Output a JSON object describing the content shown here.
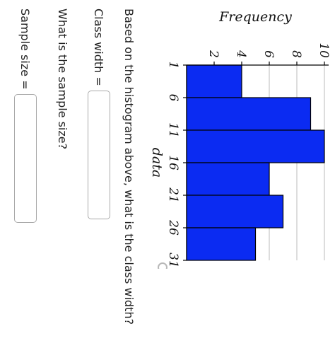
{
  "chart_data": {
    "type": "histogram",
    "xlabel": "data",
    "ylabel": "Frequency",
    "x_ticks": [
      1,
      6,
      11,
      16,
      21,
      26,
      31
    ],
    "y_ticks": [
      2,
      4,
      6,
      8,
      10
    ],
    "ylim": [
      0,
      10
    ],
    "bins": [
      {
        "start": 1,
        "end": 6,
        "value": 4
      },
      {
        "start": 6,
        "end": 11,
        "value": 9
      },
      {
        "start": 11,
        "end": 16,
        "value": 10
      },
      {
        "start": 16,
        "end": 21,
        "value": 6
      },
      {
        "start": 21,
        "end": 26,
        "value": 7
      },
      {
        "start": 26,
        "end": 31,
        "value": 5
      }
    ],
    "bar_color": "#0b2bf2",
    "grid": true
  },
  "icons": {
    "zoom": "magnifier-icon"
  },
  "questions": {
    "class_width_prompt": "Based on the histogram above, what is the class width?",
    "class_width_label": "Class width =",
    "class_width_value": "",
    "sample_size_prompt": "What is the sample size?",
    "sample_size_label": "Sample size =",
    "sample_size_value": ""
  }
}
